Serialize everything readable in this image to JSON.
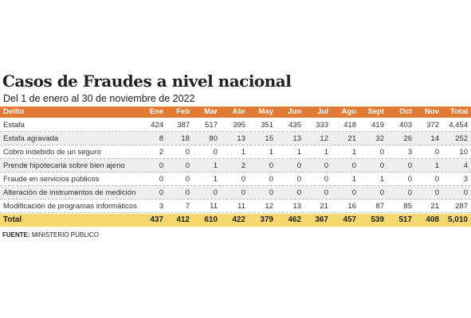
{
  "title": "Casos de Fraudes a nivel nacional",
  "subtitle": "Del 1 de enero al 30 de noviembre de 2022",
  "table": {
    "header": [
      "Delito",
      "Ene",
      "Feb",
      "Mar",
      "Abr",
      "May",
      "Jun",
      "Jul",
      "Ago",
      "Sept",
      "Oct",
      "Nov",
      "Total"
    ],
    "rows": [
      [
        "Estafa",
        "424",
        "387",
        "517",
        "395",
        "351",
        "435",
        "333",
        "418",
        "419",
        "403",
        "372",
        "4,454"
      ],
      [
        "Estafa agravada",
        "8",
        "18",
        "80",
        "13",
        "15",
        "13",
        "12",
        "21",
        "32",
        "26",
        "14",
        "252"
      ],
      [
        "Cobro indebido de un seguro",
        "2",
        "0",
        "0",
        "1",
        "1",
        "1",
        "1",
        "1",
        "0",
        "3",
        "0",
        "10"
      ],
      [
        "Prende hipotecaria sobre bien ajeno",
        "0",
        "0",
        "1",
        "2",
        "0",
        "0",
        "0",
        "0",
        "0",
        "0",
        "1",
        "4"
      ],
      [
        "Fraude en servicios públicos",
        "0",
        "0",
        "1",
        "0",
        "0",
        "0",
        "0",
        "1",
        "1",
        "0",
        "0",
        "3"
      ],
      [
        "Alteración de instrumentos de medición",
        "0",
        "0",
        "0",
        "0",
        "0",
        "0",
        "0",
        "0",
        "0",
        "0",
        "0",
        "0"
      ],
      [
        "Modificación de programas informáticos",
        "3",
        "7",
        "11",
        "11",
        "12",
        "13",
        "21",
        "16",
        "87",
        "85",
        "21",
        "287"
      ]
    ],
    "total": [
      "Total",
      "437",
      "412",
      "610",
      "422",
      "379",
      "462",
      "367",
      "457",
      "539",
      "517",
      "408",
      "5,010"
    ]
  },
  "source": {
    "label": "FUENTE:",
    "text": "MINISTERIO PÚBLICO"
  }
}
